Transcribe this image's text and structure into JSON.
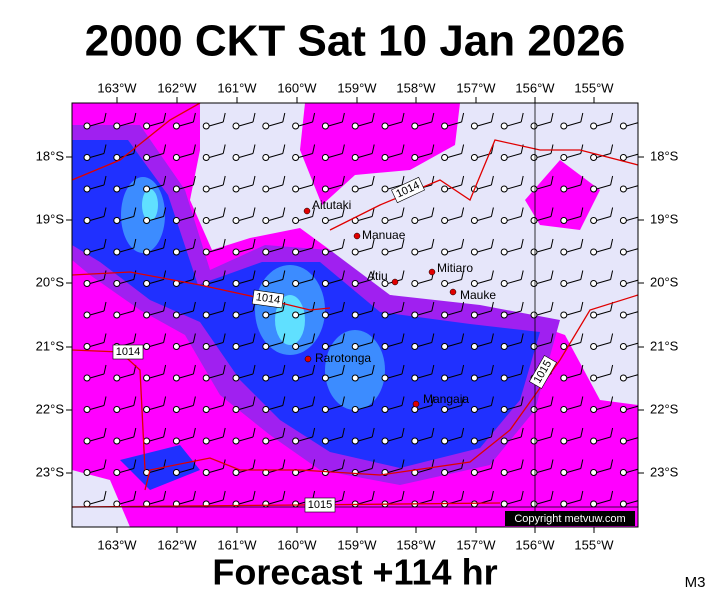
{
  "title": "2000 CKT Sat 10 Jan 2026",
  "footer": "Forecast +114 hr",
  "corner_label": "M3",
  "copyright": "Copyright metvuw.com",
  "longitude_labels": [
    "163°W",
    "162°W",
    "161°W",
    "160°W",
    "159°W",
    "158°W",
    "157°W",
    "156°W",
    "155°W"
  ],
  "latitude_labels": [
    "18°S",
    "19°S",
    "20°S",
    "21°S",
    "22°S",
    "23°S"
  ],
  "places": [
    "Aitutaki",
    "Manuae",
    "Atiu",
    "Mitiaro",
    "Mauke",
    "Rarotonga",
    "Mangaia"
  ],
  "isobar_labels": [
    "1014",
    "1014",
    "1014",
    "1015",
    "1015"
  ]
}
